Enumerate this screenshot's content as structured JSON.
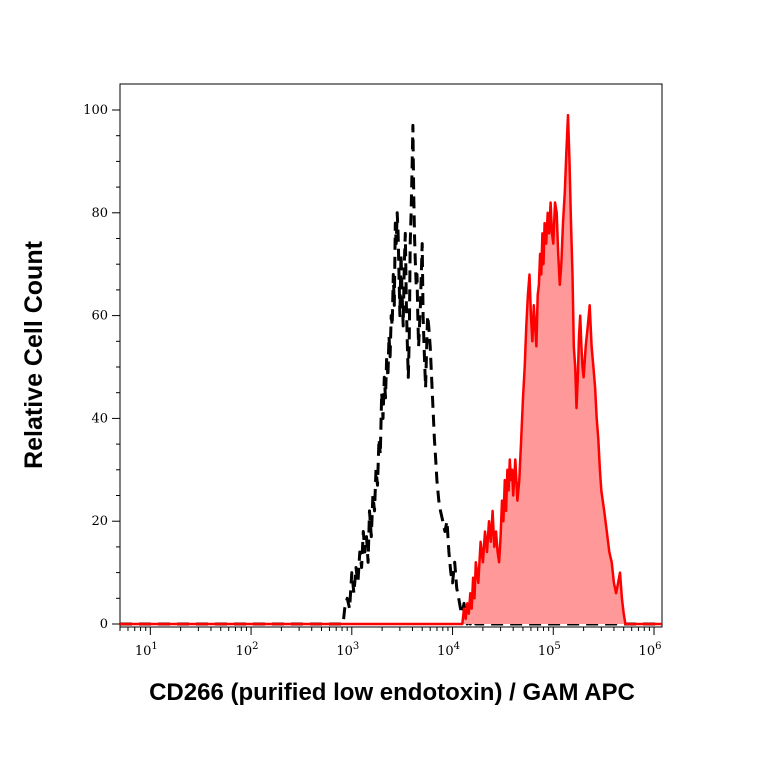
{
  "chart_data": {
    "type": "area",
    "title": "",
    "xlabel": "CD266 (purified low endotoxin) / GAM APC",
    "ylabel": "Relative Cell Count",
    "xscale": "log",
    "xlim": [
      5,
      1200000
    ],
    "ylim": [
      0,
      100
    ],
    "grid": false,
    "legend": "none",
    "x_ticks": [
      {
        "value": 10,
        "base": "10",
        "exp": "1"
      },
      {
        "value": 100,
        "base": "10",
        "exp": "2"
      },
      {
        "value": 1000,
        "base": "10",
        "exp": "3"
      },
      {
        "value": 10000,
        "base": "10",
        "exp": "4"
      },
      {
        "value": 100000,
        "base": "10",
        "exp": "5"
      },
      {
        "value": 1000000,
        "base": "10",
        "exp": "6"
      }
    ],
    "y_ticks": [
      0,
      20,
      40,
      60,
      80,
      100
    ],
    "series": [
      {
        "style": "dashed",
        "color": "#000000",
        "fill": "none",
        "points": [
          [
            5,
            0
          ],
          [
            500,
            0
          ],
          [
            820,
            0
          ],
          [
            850,
            3
          ],
          [
            900,
            5
          ],
          [
            950,
            3
          ],
          [
            1000,
            10
          ],
          [
            1050,
            6
          ],
          [
            1100,
            11
          ],
          [
            1150,
            8
          ],
          [
            1200,
            14
          ],
          [
            1250,
            11
          ],
          [
            1300,
            18
          ],
          [
            1350,
            14
          ],
          [
            1400,
            17
          ],
          [
            1450,
            12
          ],
          [
            1500,
            22
          ],
          [
            1560,
            17
          ],
          [
            1620,
            25
          ],
          [
            1680,
            22
          ],
          [
            1740,
            30
          ],
          [
            1800,
            27
          ],
          [
            1860,
            36
          ],
          [
            1920,
            33
          ],
          [
            1980,
            45
          ],
          [
            2040,
            40
          ],
          [
            2100,
            48
          ],
          [
            2160,
            44
          ],
          [
            2220,
            52
          ],
          [
            2280,
            48
          ],
          [
            2340,
            56
          ],
          [
            2400,
            52
          ],
          [
            2460,
            60
          ],
          [
            2520,
            58
          ],
          [
            2580,
            68
          ],
          [
            2640,
            62
          ],
          [
            2700,
            78
          ],
          [
            2760,
            74
          ],
          [
            2820,
            80
          ],
          [
            2880,
            76
          ],
          [
            2940,
            68
          ],
          [
            3000,
            60
          ],
          [
            3080,
            72
          ],
          [
            3160,
            64
          ],
          [
            3240,
            58
          ],
          [
            3320,
            70
          ],
          [
            3400,
            76
          ],
          [
            3480,
            62
          ],
          [
            3560,
            54
          ],
          [
            3640,
            48
          ],
          [
            3720,
            56
          ],
          [
            3800,
            74
          ],
          [
            3880,
            80
          ],
          [
            3960,
            88
          ],
          [
            4040,
            97
          ],
          [
            4120,
            84
          ],
          [
            4200,
            75
          ],
          [
            4280,
            70
          ],
          [
            4360,
            66
          ],
          [
            4440,
            68
          ],
          [
            4520,
            60
          ],
          [
            4600,
            54
          ],
          [
            4700,
            58
          ],
          [
            4800,
            62
          ],
          [
            4900,
            68
          ],
          [
            5000,
            74
          ],
          [
            5100,
            60
          ],
          [
            5200,
            55
          ],
          [
            5300,
            50
          ],
          [
            5400,
            46
          ],
          [
            5500,
            52
          ],
          [
            5650,
            60
          ],
          [
            5800,
            58
          ],
          [
            6000,
            54
          ],
          [
            6200,
            48
          ],
          [
            6400,
            42
          ],
          [
            6600,
            36
          ],
          [
            6800,
            32
          ],
          [
            7000,
            28
          ],
          [
            7300,
            24
          ],
          [
            7600,
            22
          ],
          [
            8000,
            20
          ],
          [
            8400,
            18
          ],
          [
            8800,
            20
          ],
          [
            9200,
            14
          ],
          [
            9600,
            10
          ],
          [
            10000,
            8
          ],
          [
            10500,
            12
          ],
          [
            11000,
            7
          ],
          [
            11500,
            5
          ],
          [
            12000,
            3
          ],
          [
            12500,
            2
          ],
          [
            13000,
            4
          ],
          [
            13500,
            1
          ],
          [
            14000,
            0
          ],
          [
            14500,
            2
          ],
          [
            15000,
            0
          ],
          [
            16000,
            1
          ],
          [
            17000,
            0
          ],
          [
            18000,
            0
          ],
          [
            20000,
            0
          ],
          [
            1200000,
            0
          ]
        ]
      },
      {
        "style": "solid",
        "color": "#ff0000",
        "fill": "#ff9999",
        "points": [
          [
            5,
            0
          ],
          [
            12500,
            0
          ],
          [
            13000,
            3
          ],
          [
            13500,
            1
          ],
          [
            14000,
            4
          ],
          [
            14500,
            2
          ],
          [
            15000,
            6
          ],
          [
            15500,
            3
          ],
          [
            16000,
            9
          ],
          [
            16500,
            5
          ],
          [
            17000,
            12
          ],
          [
            18000,
            8
          ],
          [
            19000,
            16
          ],
          [
            20000,
            12
          ],
          [
            21000,
            18
          ],
          [
            22000,
            14
          ],
          [
            23000,
            20
          ],
          [
            24000,
            16
          ],
          [
            25000,
            22
          ],
          [
            26000,
            15
          ],
          [
            27000,
            18
          ],
          [
            28000,
            14
          ],
          [
            29000,
            12
          ],
          [
            30000,
            17
          ],
          [
            31000,
            24
          ],
          [
            32000,
            20
          ],
          [
            33000,
            28
          ],
          [
            34000,
            22
          ],
          [
            35000,
            30
          ],
          [
            36000,
            26
          ],
          [
            37000,
            32
          ],
          [
            38000,
            28
          ],
          [
            39000,
            30
          ],
          [
            40000,
            25
          ],
          [
            42000,
            32
          ],
          [
            44000,
            24
          ],
          [
            46000,
            28
          ],
          [
            48000,
            36
          ],
          [
            50000,
            44
          ],
          [
            52000,
            50
          ],
          [
            54000,
            58
          ],
          [
            56000,
            64
          ],
          [
            58000,
            68
          ],
          [
            60000,
            60
          ],
          [
            62000,
            55
          ],
          [
            64000,
            62
          ],
          [
            66000,
            58
          ],
          [
            68000,
            54
          ],
          [
            70000,
            64
          ],
          [
            72000,
            66
          ],
          [
            74000,
            72
          ],
          [
            76000,
            68
          ],
          [
            78000,
            76
          ],
          [
            80000,
            70
          ],
          [
            82000,
            78
          ],
          [
            85000,
            74
          ],
          [
            88000,
            80
          ],
          [
            91000,
            76
          ],
          [
            94000,
            82
          ],
          [
            97000,
            76
          ],
          [
            100000,
            74
          ],
          [
            104000,
            82
          ],
          [
            108000,
            80
          ],
          [
            112000,
            72
          ],
          [
            116000,
            66
          ],
          [
            120000,
            70
          ],
          [
            125000,
            78
          ],
          [
            130000,
            84
          ],
          [
            135000,
            92
          ],
          [
            140000,
            99
          ],
          [
            145000,
            90
          ],
          [
            150000,
            78
          ],
          [
            155000,
            68
          ],
          [
            160000,
            54
          ],
          [
            165000,
            50
          ],
          [
            170000,
            42
          ],
          [
            175000,
            48
          ],
          [
            180000,
            56
          ],
          [
            185000,
            60
          ],
          [
            190000,
            54
          ],
          [
            195000,
            50
          ],
          [
            200000,
            48
          ],
          [
            210000,
            54
          ],
          [
            220000,
            58
          ],
          [
            230000,
            62
          ],
          [
            240000,
            54
          ],
          [
            250000,
            50
          ],
          [
            260000,
            46
          ],
          [
            270000,
            40
          ],
          [
            280000,
            36
          ],
          [
            290000,
            30
          ],
          [
            300000,
            26
          ],
          [
            320000,
            22
          ],
          [
            340000,
            18
          ],
          [
            360000,
            14
          ],
          [
            380000,
            12
          ],
          [
            400000,
            8
          ],
          [
            420000,
            6
          ],
          [
            440000,
            8
          ],
          [
            460000,
            10
          ],
          [
            480000,
            5
          ],
          [
            500000,
            2
          ],
          [
            520000,
            0
          ],
          [
            540000,
            0
          ],
          [
            600000,
            0
          ],
          [
            1200000,
            0
          ]
        ]
      }
    ]
  }
}
